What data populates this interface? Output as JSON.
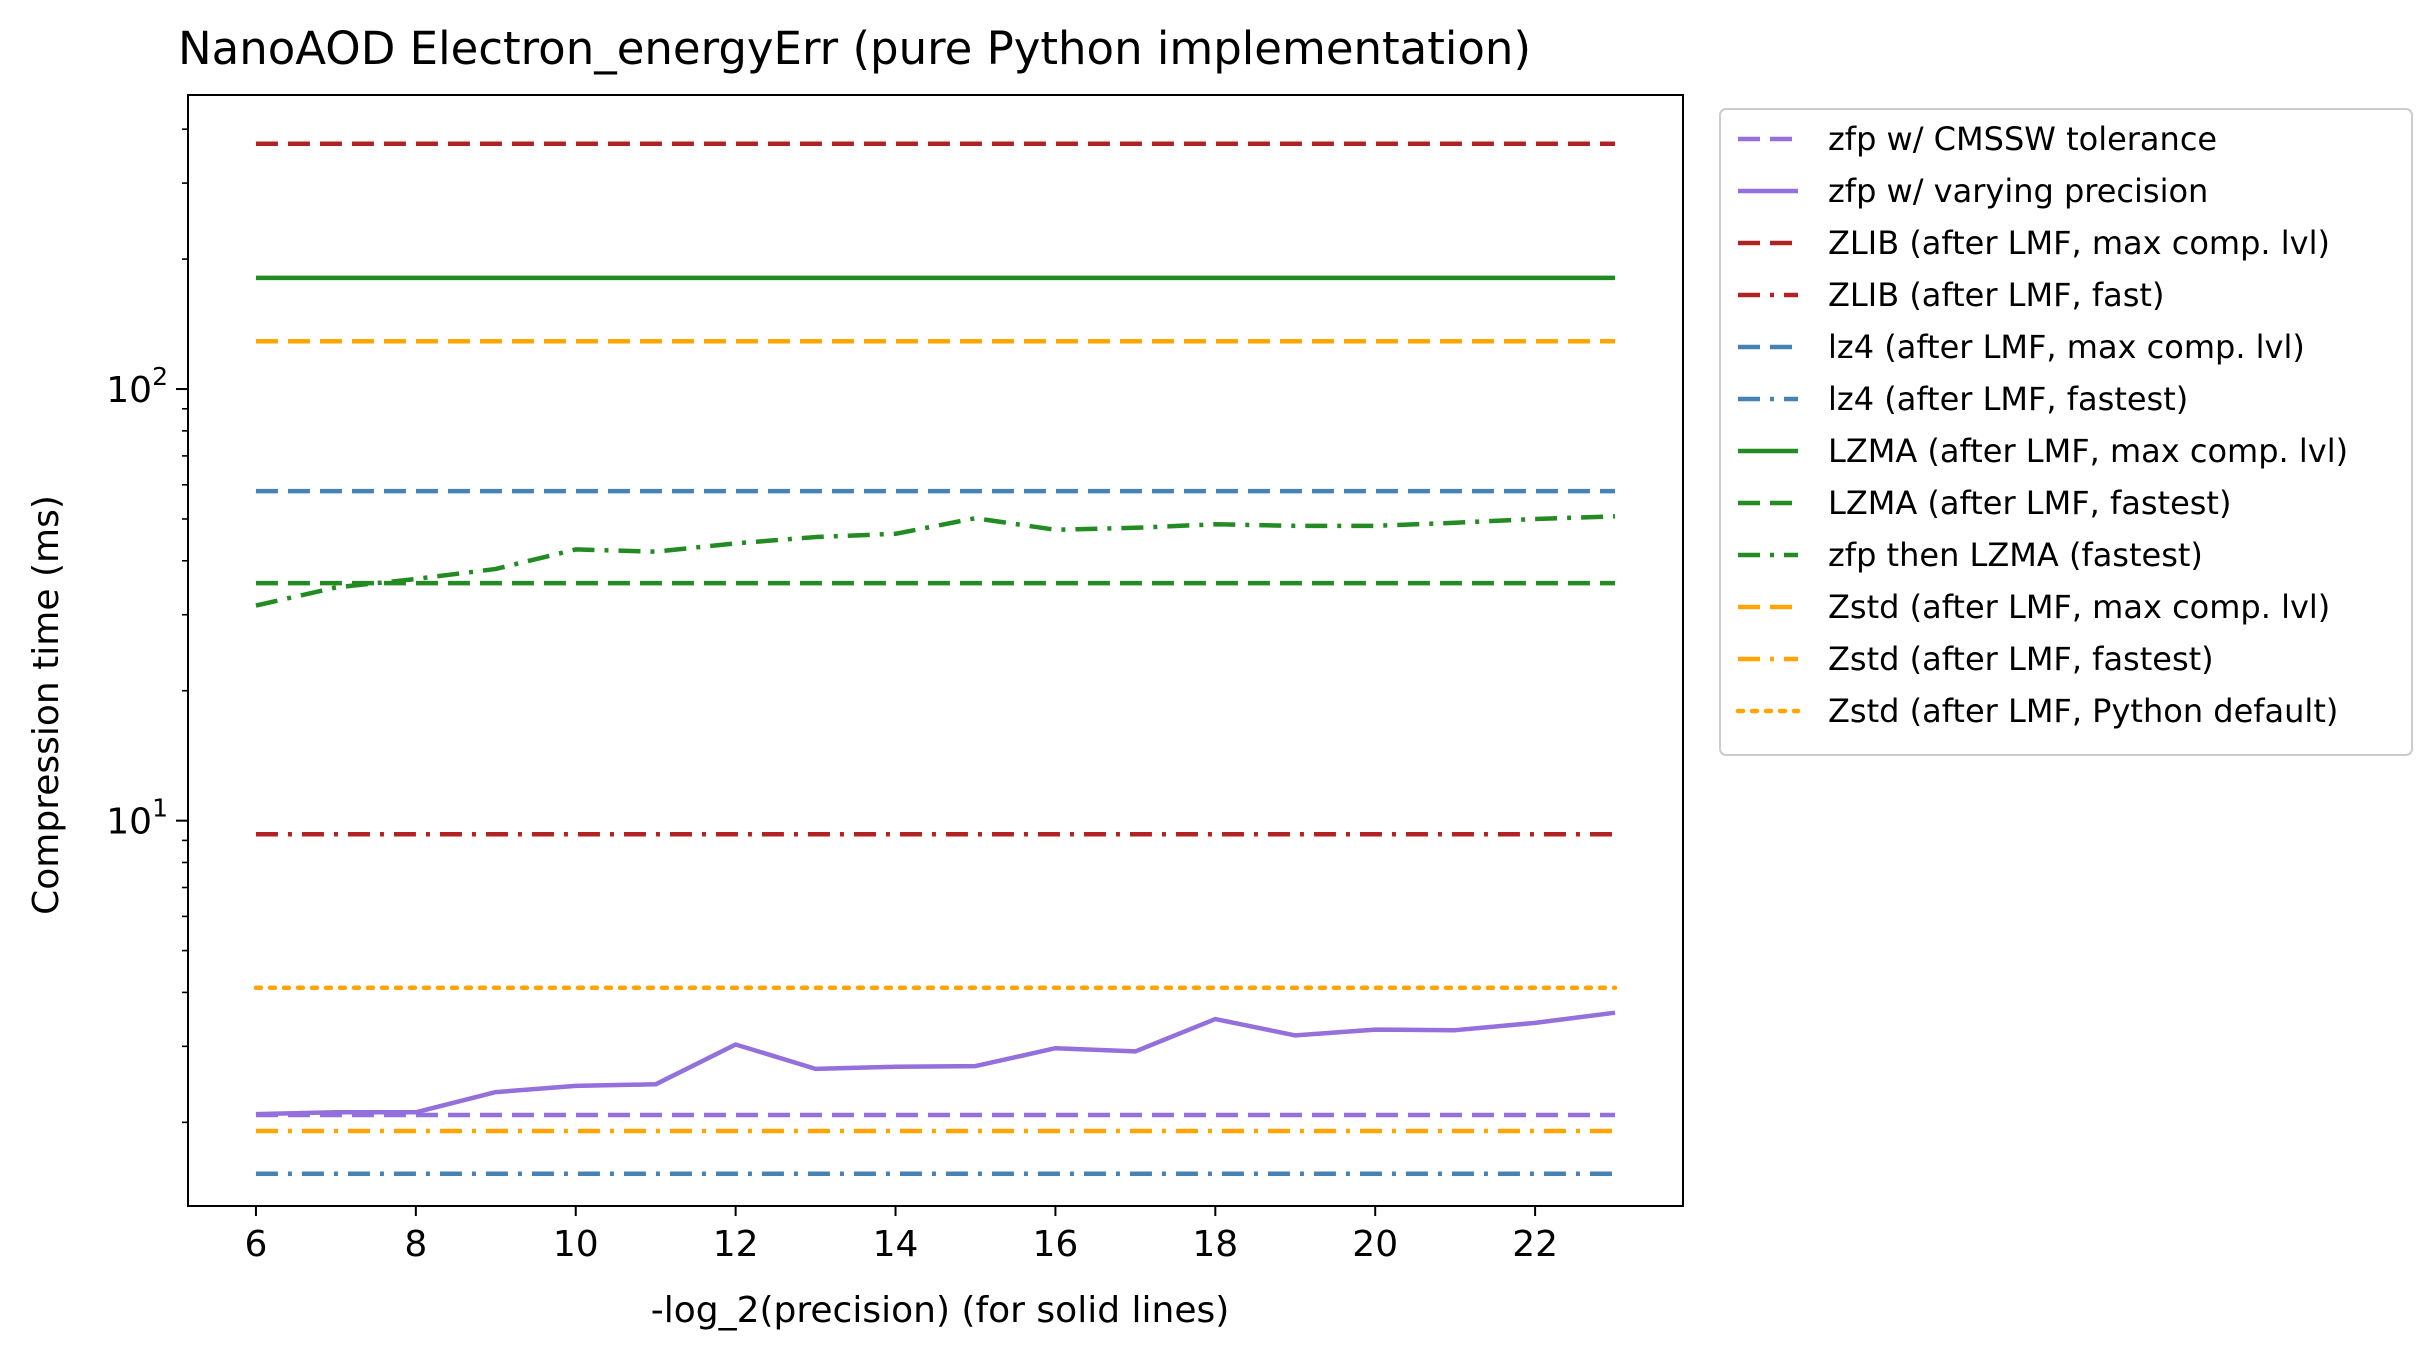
{
  "chart_data": {
    "type": "line",
    "title": "NanoAOD Electron_energyErr (pure Python implementation)",
    "xlabel": "-log_2(precision) (for solid lines)",
    "ylabel": "Compression time (ms)",
    "x_scale": "linear",
    "y_scale": "log",
    "xlim": [
      5.15,
      23.85
    ],
    "ylim": [
      1.28,
      480
    ],
    "x_ticks": [
      6,
      8,
      10,
      12,
      14,
      16,
      18,
      20,
      22
    ],
    "y_major_ticks": [
      {
        "value": 10,
        "base": "10",
        "exp": "1"
      },
      {
        "value": 100,
        "base": "10",
        "exp": "2"
      }
    ],
    "y_minor_ticks": [
      2,
      3,
      4,
      5,
      6,
      7,
      8,
      9,
      20,
      30,
      40,
      50,
      60,
      70,
      80,
      90,
      200,
      300,
      400
    ],
    "grid": false,
    "legend_position": "outside right, top",
    "series": [
      {
        "name": "zfp w/ CMSSW tolerance",
        "color": "#9370db",
        "dash": "dashed",
        "x": [
          6,
          23
        ],
        "y": [
          2.08,
          2.08
        ]
      },
      {
        "name": "zfp w/ varying precision",
        "color": "#9370db",
        "dash": "solid",
        "x": [
          6,
          7,
          8,
          9,
          10,
          11,
          12,
          13,
          14,
          15,
          16,
          17,
          18,
          19,
          20,
          21,
          22,
          23
        ],
        "y": [
          2.09,
          2.11,
          2.11,
          2.35,
          2.43,
          2.45,
          3.03,
          2.66,
          2.69,
          2.7,
          2.97,
          2.92,
          3.47,
          3.18,
          3.28,
          3.27,
          3.4,
          3.59
        ]
      },
      {
        "name": "ZLIB (after LMF, max comp. lvl)",
        "color": "#b22222",
        "dash": "dashed",
        "x": [
          6,
          23
        ],
        "y": [
          370,
          370
        ]
      },
      {
        "name": "ZLIB (after LMF, fast)",
        "color": "#b22222",
        "dash": "dashdot",
        "x": [
          6,
          23
        ],
        "y": [
          9.3,
          9.3
        ]
      },
      {
        "name": "lz4 (after LMF, max comp. lvl)",
        "color": "#4682b4",
        "dash": "dashed",
        "x": [
          6,
          23
        ],
        "y": [
          58,
          58
        ]
      },
      {
        "name": "lz4 (after LMF, fastest)",
        "color": "#4682b4",
        "dash": "dashdot",
        "x": [
          6,
          23
        ],
        "y": [
          1.52,
          1.52
        ]
      },
      {
        "name": "LZMA (after LMF, max comp. lvl)",
        "color": "#228b22",
        "dash": "solid",
        "x": [
          6,
          23
        ],
        "y": [
          181,
          181
        ]
      },
      {
        "name": "LZMA (after LMF, fastest)",
        "color": "#228b22",
        "dash": "dashed",
        "x": [
          6,
          23
        ],
        "y": [
          35.5,
          35.5
        ]
      },
      {
        "name": "zfp then LZMA (fastest)",
        "color": "#228b22",
        "dash": "dashdot",
        "x": [
          6,
          7,
          8,
          9,
          10,
          11,
          12,
          13,
          14,
          15,
          16,
          17,
          18,
          19,
          20,
          21,
          22,
          23
        ],
        "y": [
          31.5,
          34.7,
          36.3,
          38.3,
          42.5,
          42.0,
          43.9,
          45.4,
          46.2,
          50.2,
          47.2,
          47.7,
          48.6,
          48.2,
          48.2,
          49.0,
          50.0,
          50.7
        ]
      },
      {
        "name": "Zstd (after LMF, max comp. lvl)",
        "color": "#ffa500",
        "dash": "dashed",
        "x": [
          6,
          23
        ],
        "y": [
          129,
          129
        ]
      },
      {
        "name": "Zstd (after LMF, fastest)",
        "color": "#ffa500",
        "dash": "dashdot",
        "x": [
          6,
          23
        ],
        "y": [
          1.91,
          1.91
        ]
      },
      {
        "name": "Zstd (after LMF, Python default)",
        "color": "#ffa500",
        "dash": "dotted",
        "x": [
          6,
          23
        ],
        "y": [
          4.1,
          4.1
        ]
      }
    ]
  }
}
